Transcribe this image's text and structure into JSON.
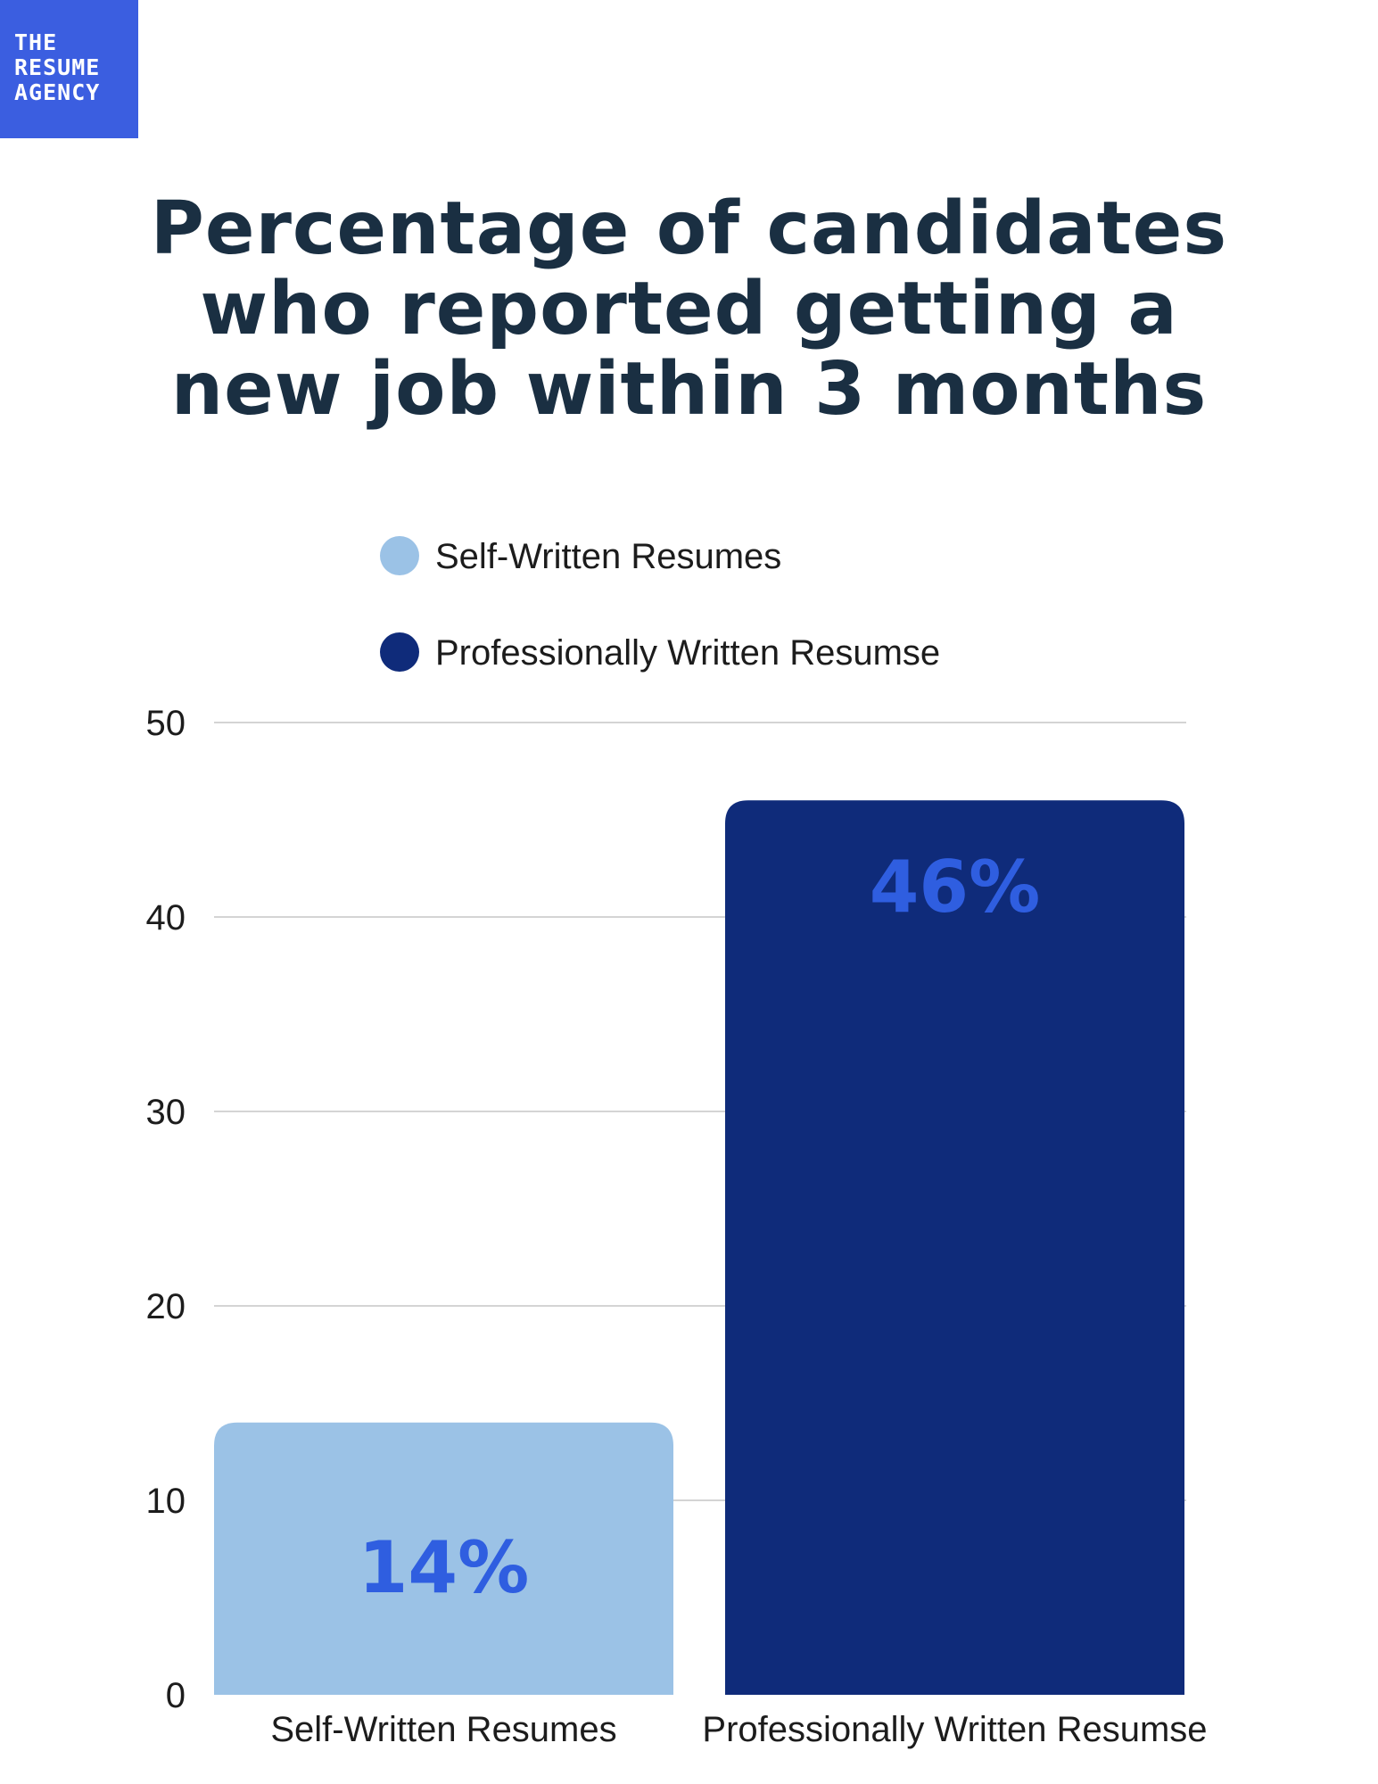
{
  "logo": {
    "lines": [
      "THE",
      "RESUME",
      "AGENCY"
    ],
    "color": "#3b5ee0"
  },
  "chart_data": {
    "type": "bar",
    "title_lines": [
      "Percentage of candidates",
      "who reported getting a",
      "new job within 3 months"
    ],
    "categories": [
      "Self-Written Resumes",
      "Professionally Written Resumse"
    ],
    "values": [
      14,
      46
    ],
    "data_labels": [
      "14%",
      "46%"
    ],
    "colors": [
      "#9bc2e6",
      "#0f2b7a"
    ],
    "label_color": "#2f5ee0",
    "legend": [
      "Self-Written Resumes",
      "Professionally Written Resumse"
    ],
    "legend_placement": "top-center",
    "ylim": [
      0,
      50
    ],
    "yticks": [
      0,
      10,
      20,
      30,
      40,
      50
    ],
    "grid": true
  }
}
